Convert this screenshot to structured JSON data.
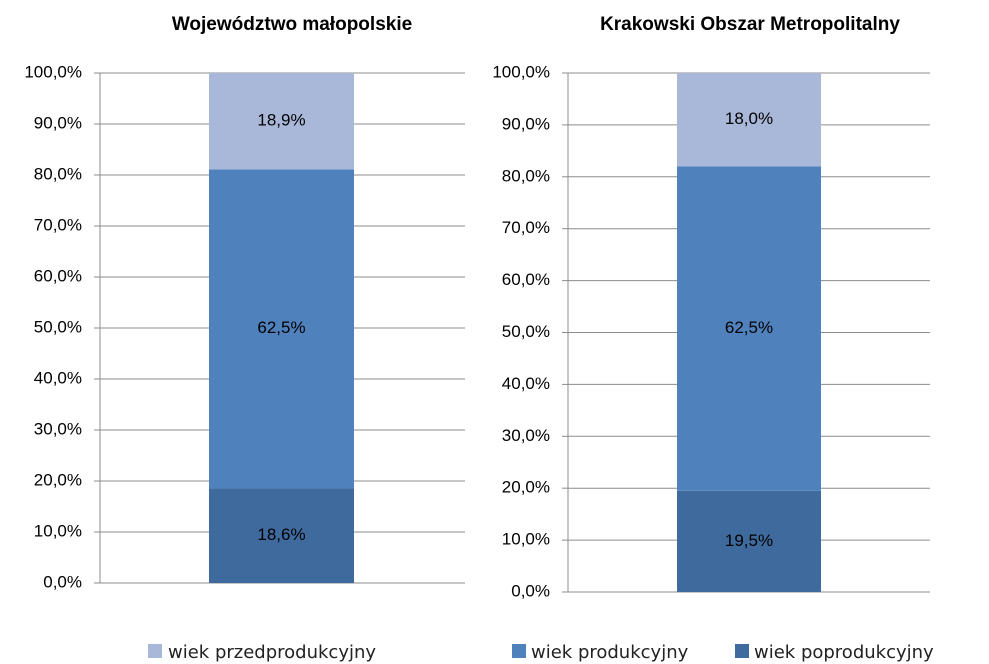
{
  "chart_data": [
    {
      "type": "stacked_bar",
      "title": "Województwo małopolskie",
      "categories": [
        null
      ],
      "series": [
        {
          "name": "wiek przedprodukcyjny",
          "color": "#a9b8d8",
          "values": [
            18.9
          ],
          "value_labels": [
            "18,9%"
          ]
        },
        {
          "name": "wiek produkcyjny",
          "color": "#4f81bd",
          "values": [
            62.5
          ],
          "value_labels": [
            "62,5%"
          ]
        },
        {
          "name": "wiek poprodukcyjny",
          "color": "#3f6a9e",
          "values": [
            18.6
          ],
          "value_labels": [
            "18,6%"
          ]
        }
      ],
      "ylim": [
        0,
        100
      ],
      "yticks": [
        {
          "value": 0,
          "label": "0,0%"
        },
        {
          "value": 10,
          "label": "10,0%"
        },
        {
          "value": 20,
          "label": "20,0%"
        },
        {
          "value": 30,
          "label": "30,0%"
        },
        {
          "value": 40,
          "label": "40,0%"
        },
        {
          "value": 50,
          "label": "50,0%"
        },
        {
          "value": 60,
          "label": "60,0%"
        },
        {
          "value": 70,
          "label": "70,0%"
        },
        {
          "value": 80,
          "label": "80,0%"
        },
        {
          "value": 90,
          "label": "90,0%"
        },
        {
          "value": 100,
          "label": "100,0%"
        }
      ],
      "grid": true
    },
    {
      "type": "stacked_bar",
      "title": "Krakowski Obszar Metropolitalny",
      "categories": [
        null
      ],
      "series": [
        {
          "color": "#a9b8d8",
          "values": [
            18.0
          ],
          "value_labels": [
            "18,0%"
          ]
        },
        {
          "color": "#4f81bd",
          "values": [
            62.5
          ],
          "value_labels": [
            "62,5%"
          ]
        },
        {
          "color": "#3f6a9e",
          "values": [
            19.5
          ],
          "value_labels": [
            "19,5%"
          ]
        }
      ],
      "ylim": [
        0,
        100
      ],
      "yticks": [
        {
          "value": 0,
          "label": "0,0%"
        },
        {
          "value": 10,
          "label": "10,0%"
        },
        {
          "value": 20,
          "label": "20,0%"
        },
        {
          "value": 30,
          "label": "30,0%"
        },
        {
          "value": 40,
          "label": "40,0%"
        },
        {
          "value": 50,
          "label": "50,0%"
        },
        {
          "value": 60,
          "label": "60,0%"
        },
        {
          "value": 70,
          "label": "70,0%"
        },
        {
          "value": 80,
          "label": "80,0%"
        },
        {
          "value": 90,
          "label": "90,0%"
        },
        {
          "value": 100,
          "label": "100,0%"
        }
      ],
      "grid": true
    }
  ]
}
